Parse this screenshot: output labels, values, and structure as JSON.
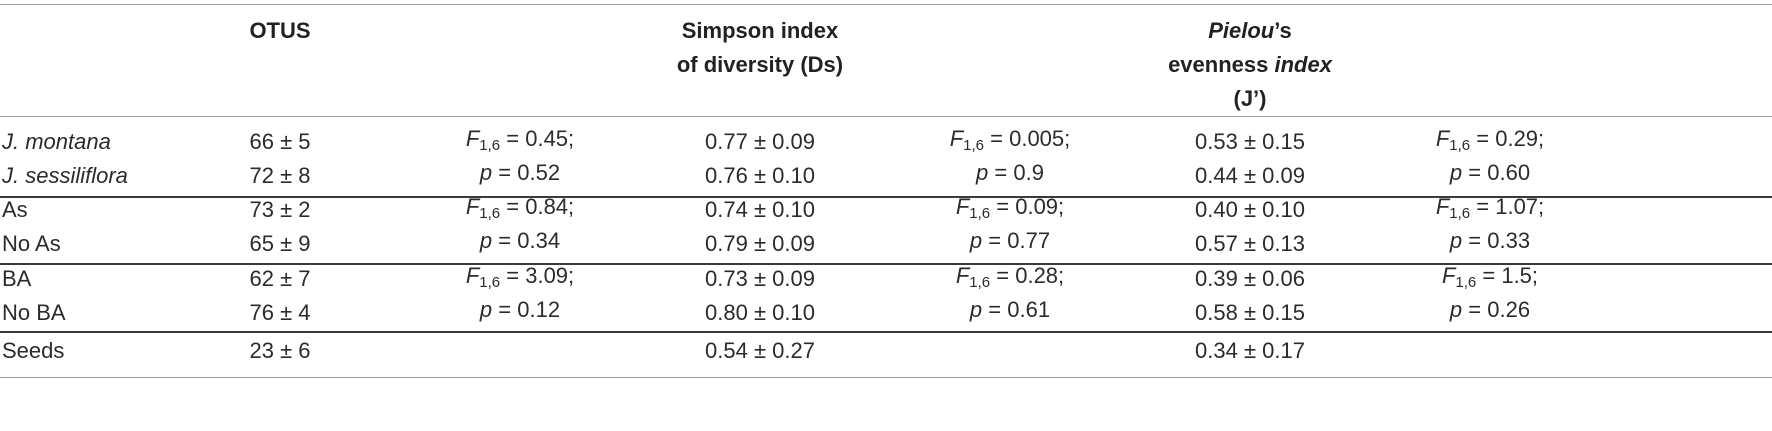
{
  "headers": {
    "otus": "OTUS",
    "simpson_line1": "Simpson index",
    "simpson_line2": "of diversity (Ds)",
    "pielou_italic": "Pielou",
    "pielou_suffix": "’s",
    "evenness_line2_a": "evenness ",
    "evenness_line2_b": "index",
    "evenness_line3": "(J’)"
  },
  "groups": [
    {
      "rows": [
        {
          "label": "J. montana",
          "italic": true,
          "otus": "66 ± 5",
          "ds": "0.77 ± 0.09",
          "j": "0.53 ± 0.15"
        },
        {
          "label": "J. sessiliflora",
          "italic": true,
          "otus": "72 ± 8",
          "ds": "0.76 ± 0.10",
          "j": "0.44 ± 0.09"
        }
      ],
      "stats": {
        "otus": {
          "f": "0.45",
          "p": "0.52"
        },
        "ds": {
          "f": "0.005",
          "p": "0.9"
        },
        "j": {
          "f": "0.29",
          "p": "0.60"
        }
      }
    },
    {
      "rows": [
        {
          "label": "As",
          "italic": false,
          "otus": "73 ± 2",
          "ds": "0.74 ± 0.10",
          "j": "0.40 ± 0.10"
        },
        {
          "label": "No As",
          "italic": false,
          "otus": "65 ± 9",
          "ds": "0.79 ± 0.09",
          "j": "0.57 ± 0.13"
        }
      ],
      "stats": {
        "otus": {
          "f": "0.84",
          "p": "0.34"
        },
        "ds": {
          "f": "0.09",
          "p": "0.77"
        },
        "j": {
          "f": "1.07",
          "p": "0.33"
        }
      }
    },
    {
      "rows": [
        {
          "label": "BA",
          "italic": false,
          "otus": "62 ± 7",
          "ds": "0.73 ± 0.09",
          "j": "0.39 ± 0.06"
        },
        {
          "label": "No BA",
          "italic": false,
          "otus": "76 ± 4",
          "ds": "0.80 ± 0.10",
          "j": "0.58 ± 0.15"
        }
      ],
      "stats": {
        "otus": {
          "f": "3.09",
          "p": "0.12"
        },
        "ds": {
          "f": "0.28",
          "p": "0.61"
        },
        "j": {
          "f": "1.5",
          "p": "0.26"
        }
      }
    },
    {
      "rows": [
        {
          "label": "Seeds",
          "italic": false,
          "otus": "23 ± 6",
          "ds": "0.54 ± 0.27",
          "j": "0.34 ± 0.17"
        }
      ]
    }
  ],
  "stat_labels": {
    "f_symbol": "F",
    "f_subscript": "1,6",
    "f_equals": " = ",
    "p_symbol": "p",
    "p_equals": " = ",
    "semicolon": ";"
  }
}
